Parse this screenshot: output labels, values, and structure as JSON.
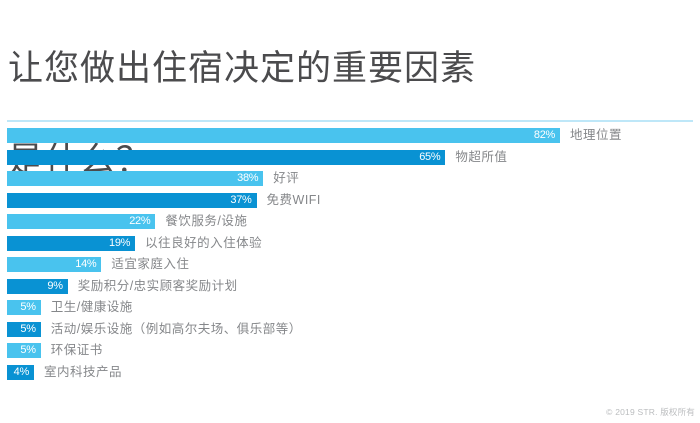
{
  "title": {
    "line1": "让您做出住宿决定的重要因素",
    "line2": "是什么？"
  },
  "footer": {
    "copyright": "© 2019 STR. 版权所有"
  },
  "colors": {
    "bar_light_blue": "#49c3ee",
    "bar_dark_blue": "#0992d3",
    "title_text": "#4b4b4d",
    "category_label_text": "#85878a",
    "percent_label_text": "#ffffff",
    "divider_line": "#bee7f8",
    "copyright_text": "#bbbdbf",
    "background": "#ffffff"
  },
  "chart_data": {
    "type": "bar",
    "orientation": "horizontal",
    "title": "让您做出住宿决定的重要因素是什么？",
    "xlabel": "",
    "ylabel": "",
    "xlim": [
      0,
      82
    ],
    "grid": false,
    "legend": false,
    "value_label_position": "inside-end",
    "category_label_position": "right-of-bar",
    "bar_color_pattern": "alternating",
    "bar_colors": [
      "#49c3ee",
      "#0992d3"
    ],
    "categories": [
      "地理位置",
      "物超所值",
      "好评",
      "免费WIFI",
      "餐饮服务/设施",
      "以往良好的入住体验",
      "适宜家庭入住",
      "奖励积分/忠实顾客奖励计划",
      "卫生/健康设施",
      "活动/娱乐设施（例如高尔夫场、俱乐部等）",
      "环保证书",
      "室内科技产品"
    ],
    "values": [
      82,
      65,
      38,
      37,
      22,
      19,
      14,
      9,
      5,
      5,
      5,
      4
    ],
    "value_labels": [
      "82%",
      "65%",
      "38%",
      "37%",
      "22%",
      "19%",
      "14%",
      "9%",
      "5%",
      "5%",
      "5%",
      "4%"
    ]
  }
}
